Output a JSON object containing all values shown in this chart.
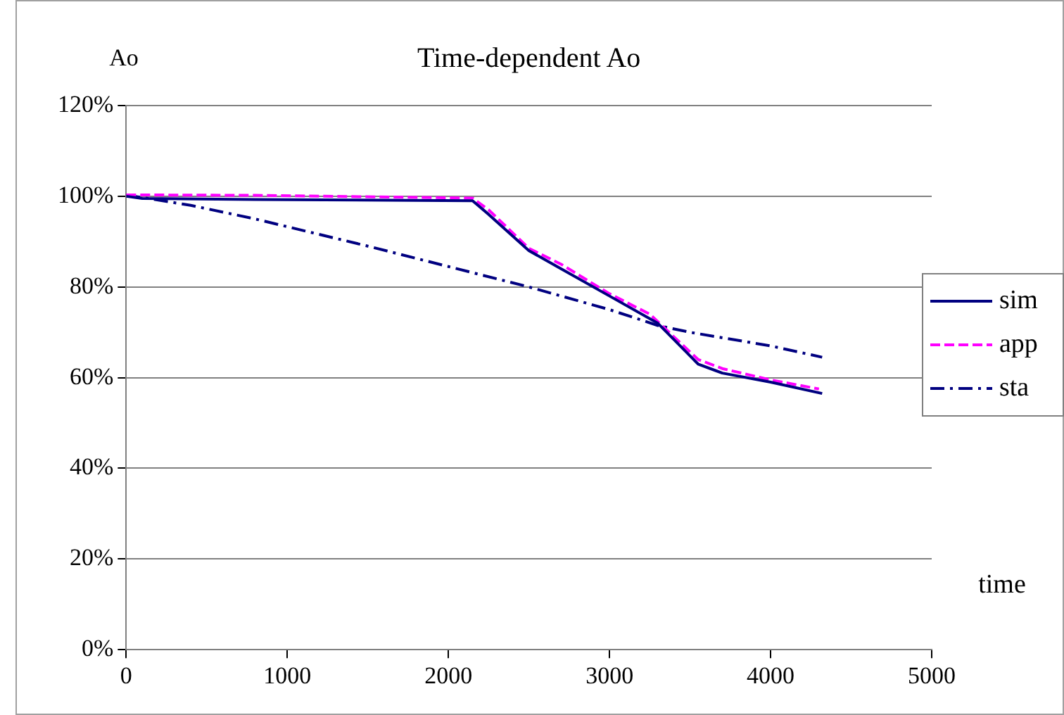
{
  "chart_data": {
    "type": "line",
    "title": "Time-dependent Ao",
    "xlabel": "time",
    "ylabel": "Ao",
    "xlim": [
      0,
      5000
    ],
    "xticks": [
      0,
      1000,
      2000,
      3000,
      4000,
      5000
    ],
    "ylim": [
      0,
      120
    ],
    "yticks": [
      {
        "value": 0,
        "label": "0%"
      },
      {
        "value": 20,
        "label": "20%"
      },
      {
        "value": 40,
        "label": "40%"
      },
      {
        "value": 60,
        "label": "60%"
      },
      {
        "value": 80,
        "label": "80%"
      },
      {
        "value": 100,
        "label": "100%"
      },
      {
        "value": 120,
        "label": "120%"
      }
    ],
    "grid": "y",
    "legend": "right",
    "marker": "none",
    "series": [
      {
        "name": "sim",
        "color": "#000080",
        "line_style": "solid",
        "x": [
          0,
          100,
          800,
          2150,
          2250,
          2500,
          2700,
          3000,
          3300,
          3550,
          3700,
          4000,
          4320
        ],
        "values": [
          100,
          99.5,
          99.3,
          99,
          96,
          88,
          84,
          78,
          72,
          63,
          61,
          59,
          56.5
        ]
      },
      {
        "name": "app",
        "color": "#ff00ff",
        "line_style": "dashed",
        "x": [
          0,
          800,
          2150,
          2250,
          2500,
          2700,
          3000,
          3250,
          3550,
          3700,
          4000,
          4300
        ],
        "values": [
          100.3,
          100.2,
          99.6,
          97,
          88.5,
          85,
          78.5,
          74,
          64,
          62,
          59.5,
          57.5
        ]
      },
      {
        "name": "sta",
        "color": "#000080",
        "line_style": "dashdot",
        "x": [
          0,
          400,
          800,
          1500,
          2000,
          2500,
          3000,
          3300,
          3500,
          4000,
          4320
        ],
        "values": [
          100.3,
          98,
          95,
          89,
          84.5,
          80,
          75,
          71.5,
          70,
          67,
          64.5
        ]
      }
    ]
  }
}
